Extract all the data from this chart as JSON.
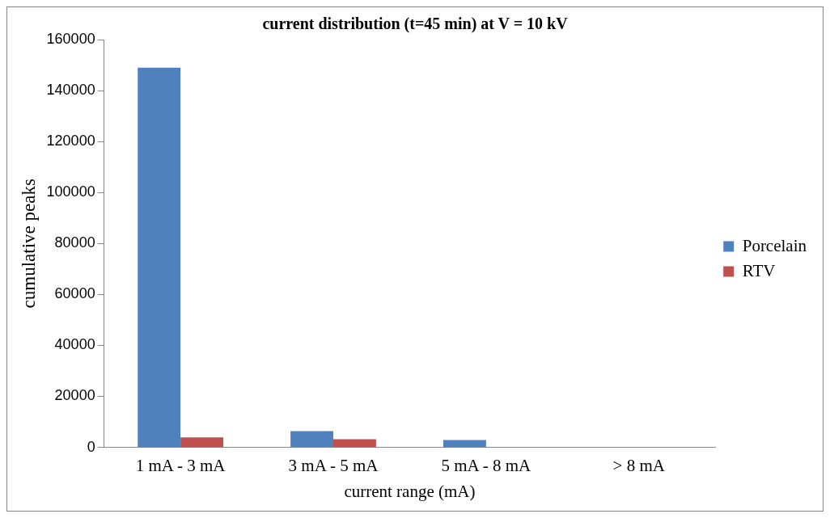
{
  "chart_data": {
    "type": "bar",
    "title": "current distribution (t=45 min) at V = 10 kV",
    "xlabel": "current range (mA)",
    "ylabel": "cumulative peaks",
    "categories": [
      "1 mA - 3 mA",
      "3 mA - 5 mA",
      "5 mA - 8 mA",
      "> 8 mA"
    ],
    "series": [
      {
        "name": "Porcelain",
        "color": "#4f81bd",
        "values": [
          149000,
          6400,
          2900,
          0
        ]
      },
      {
        "name": "RTV",
        "color": "#c0504d",
        "values": [
          3900,
          3200,
          0,
          0
        ]
      }
    ],
    "ylim": [
      0,
      160000
    ],
    "yticks": [
      0,
      20000,
      40000,
      60000,
      80000,
      100000,
      120000,
      140000,
      160000
    ],
    "grid": false,
    "legend": "right"
  }
}
